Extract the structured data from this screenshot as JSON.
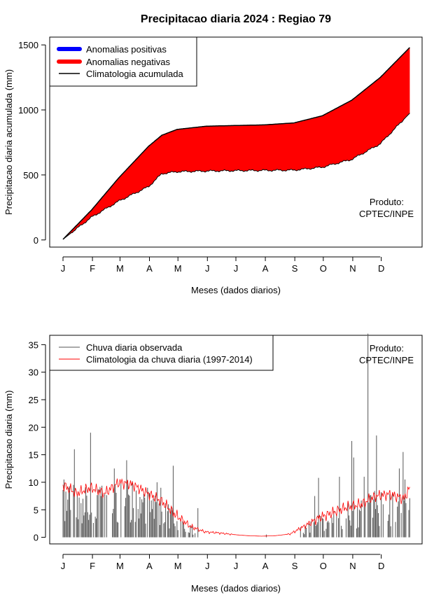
{
  "title": "Precipitacao diaria 2024 : Regiao 79",
  "months": [
    "J",
    "F",
    "M",
    "A",
    "M",
    "J",
    "J",
    "A",
    "S",
    "O",
    "N",
    "D"
  ],
  "colors": {
    "positive": "#0000ff",
    "negative": "#ff0000",
    "climatology_line": "#000000",
    "observed_bars": "#555555",
    "daily_climatology": "#ff0000"
  },
  "chart_data": [
    {
      "type": "area",
      "title": "Precipitacao diaria 2024 : Regiao 79",
      "xlabel": "Meses (dados diarios)",
      "ylabel": "Precipitacao diaria acumulada (mm)",
      "ylim": [
        -55,
        1560
      ],
      "yticks": [
        0,
        500,
        1000,
        1500
      ],
      "x_ticks": [
        "J",
        "F",
        "M",
        "A",
        "M",
        "J",
        "J",
        "A",
        "S",
        "O",
        "N",
        "D"
      ],
      "legend_position": "top-left",
      "legend": [
        "Anomalias positivas",
        "Anomalias negativas",
        "Climatologia acumulada"
      ],
      "annotation": [
        "Produto:",
        "CPTEC/INPE"
      ],
      "x_unit": "day of year",
      "x": [
        1,
        31,
        60,
        91,
        105,
        121,
        152,
        182,
        213,
        244,
        274,
        305,
        335,
        366
      ],
      "series": [
        {
          "name": "Climatologia acumulada",
          "values": [
            5,
            230,
            480,
            720,
            805,
            850,
            875,
            880,
            885,
            900,
            955,
            1075,
            1250,
            1480
          ]
        },
        {
          "name": "Chuva observada acumulada",
          "values": [
            5,
            175,
            300,
            410,
            510,
            525,
            530,
            533,
            535,
            537,
            560,
            620,
            740,
            975
          ]
        }
      ]
    },
    {
      "type": "bar",
      "xlabel": "Meses (dados diarios)",
      "ylabel": "Precipitacao diaria (mm)",
      "ylim": [
        -1.2,
        36.7
      ],
      "yticks": [
        0,
        5,
        10,
        15,
        20,
        25,
        30,
        35
      ],
      "x_ticks": [
        "J",
        "F",
        "M",
        "A",
        "M",
        "J",
        "J",
        "A",
        "S",
        "O",
        "N",
        "D"
      ],
      "legend_position": "top-left",
      "legend": [
        "Chuva diaria observada",
        "Climatologia da chuva diaria (1997-2014)"
      ],
      "annotation": [
        "Produto:",
        "CPTEC/INPE"
      ],
      "x_unit": "day of year",
      "series": [
        {
          "name": "Chuva diaria observada",
          "points": [
            [
              2,
              10.5
            ],
            [
              7,
              9
            ],
            [
              13,
              16
            ],
            [
              22,
              7
            ],
            [
              30,
              19
            ],
            [
              41,
              7.5
            ],
            [
              55,
              12.5
            ],
            [
              62,
              10
            ],
            [
              68,
              14
            ],
            [
              78,
              8.5
            ],
            [
              90,
              9
            ],
            [
              100,
              10
            ],
            [
              104,
              9
            ],
            [
              112,
              6
            ],
            [
              117,
              13
            ],
            [
              125,
              3
            ],
            [
              128,
              2.5
            ],
            [
              143,
              5.3
            ],
            [
              215,
              0.5
            ],
            [
              256,
              2
            ],
            [
              266,
              7.5
            ],
            [
              270,
              10.8
            ],
            [
              292,
              11
            ],
            [
              301,
              6.5
            ],
            [
              305,
              17.5
            ],
            [
              307,
              14.5
            ],
            [
              318,
              11
            ],
            [
              322,
              37
            ],
            [
              331,
              18.5
            ],
            [
              338,
              6
            ],
            [
              348,
              8
            ],
            [
              355,
              12.5
            ],
            [
              359,
              15.5
            ],
            [
              361,
              10.5
            ]
          ]
        },
        {
          "name": "Climatologia da chuva diaria (1997-2014)",
          "x": [
            1,
            15,
            30,
            45,
            60,
            75,
            90,
            105,
            120,
            135,
            150,
            165,
            180,
            195,
            210,
            225,
            240,
            255,
            270,
            285,
            300,
            315,
            330,
            345,
            360,
            366
          ],
          "values": [
            9.5,
            8,
            9,
            8,
            10,
            9.5,
            8,
            6.5,
            4,
            2,
            1,
            0.8,
            0.5,
            0.3,
            0.2,
            0.3,
            0.6,
            2,
            3.5,
            4.5,
            5.5,
            6,
            7.5,
            7.8,
            7,
            9
          ]
        }
      ]
    }
  ]
}
